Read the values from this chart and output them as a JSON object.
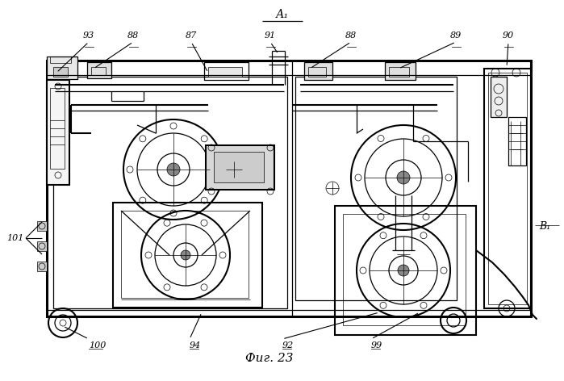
{
  "title": "Фиг. 23",
  "label_A1": "А₁",
  "label_B1": "В₁",
  "bg_color": "#ffffff",
  "line_color": "#000000",
  "figsize": [
    6.99,
    4.72
  ],
  "dpi": 100
}
